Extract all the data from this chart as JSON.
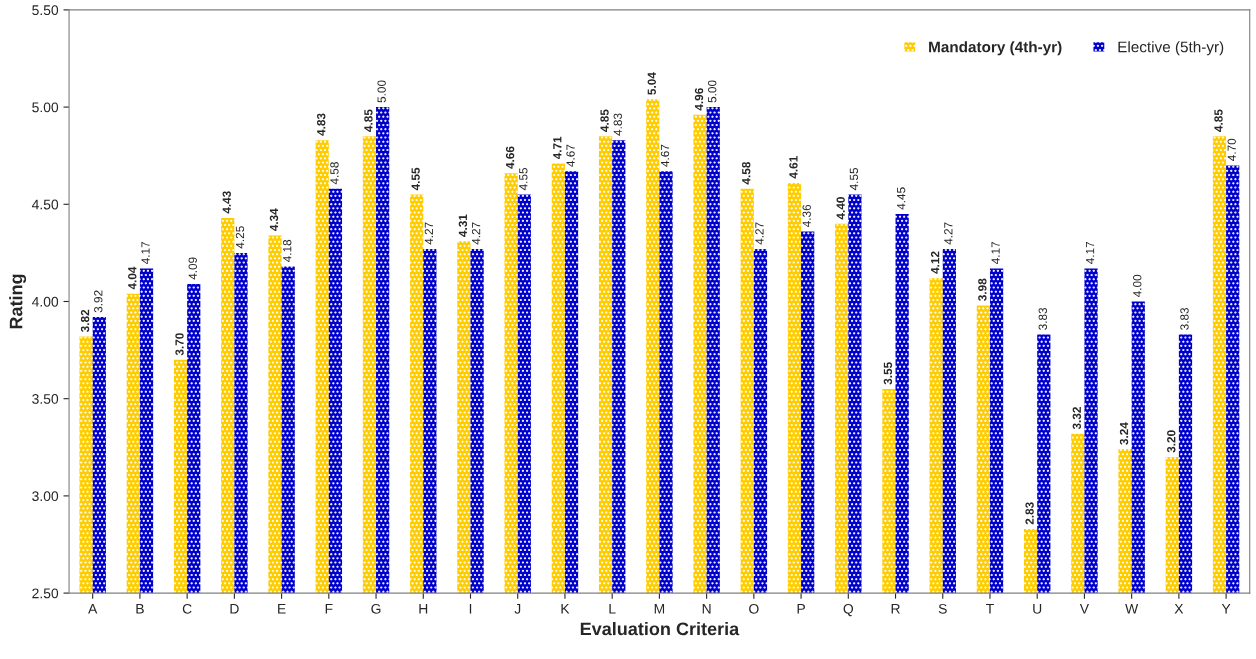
{
  "chart_data": {
    "type": "bar",
    "xlabel": "Evaluation Criteria",
    "ylabel": "Rating",
    "categories": [
      "A",
      "B",
      "C",
      "D",
      "E",
      "F",
      "G",
      "H",
      "I",
      "J",
      "K",
      "L",
      "M",
      "N",
      "O",
      "P",
      "Q",
      "R",
      "S",
      "T",
      "U",
      "V",
      "W",
      "X",
      "Y"
    ],
    "series": [
      {
        "name": "Mandatory (4th-yr)",
        "color": "#ffcc00",
        "values": [
          3.82,
          4.04,
          3.7,
          4.43,
          4.34,
          4.83,
          4.85,
          4.55,
          4.31,
          4.66,
          4.71,
          4.85,
          5.04,
          4.96,
          4.58,
          4.61,
          4.4,
          3.55,
          4.12,
          3.98,
          2.83,
          3.32,
          3.24,
          3.2,
          4.85
        ],
        "value_labels": [
          "3.82",
          "4.04",
          "3.70",
          "4.43",
          "4.34",
          "4.83",
          "4.85",
          "4.55",
          "4.31",
          "4.66",
          "4.71",
          "4.85",
          "5.04",
          "4.96",
          "4.58",
          "4.61",
          "4.40",
          "3.55",
          "4.12",
          "3.98",
          "2.83",
          "3.32",
          "3.24",
          "3.20",
          "4.85"
        ]
      },
      {
        "name": "Elective (5th-yr)",
        "color": "#0000cc",
        "values": [
          3.92,
          4.17,
          4.09,
          4.25,
          4.18,
          4.58,
          5.0,
          4.27,
          4.27,
          4.55,
          4.67,
          4.83,
          4.67,
          5.0,
          4.27,
          4.36,
          4.55,
          4.45,
          4.27,
          4.17,
          3.83,
          4.17,
          4.0,
          3.83,
          4.7
        ],
        "value_labels": [
          "3.92",
          "4.17",
          "4.09",
          "4.25",
          "4.18",
          "4.58",
          "5.00",
          "4.27",
          "4.27",
          "4.55",
          "4.67",
          "4.83",
          "4.67",
          "5.00",
          "4.27",
          "4.36",
          "4.55",
          "4.45",
          "4.27",
          "4.17",
          "3.83",
          "4.17",
          "4.00",
          "3.83",
          "4.70"
        ]
      }
    ],
    "ylim": [
      2.5,
      5.5
    ],
    "yticks": [
      {
        "value": 2.5,
        "label": "2.50"
      },
      {
        "value": 3.0,
        "label": "3.00"
      },
      {
        "value": 3.5,
        "label": "3.50"
      },
      {
        "value": 4.0,
        "label": "4.00"
      },
      {
        "value": 4.5,
        "label": "4.50"
      },
      {
        "value": 5.0,
        "label": "5.00"
      },
      {
        "value": 5.5,
        "label": "5.50"
      }
    ],
    "grid": false,
    "legend": "top right"
  }
}
